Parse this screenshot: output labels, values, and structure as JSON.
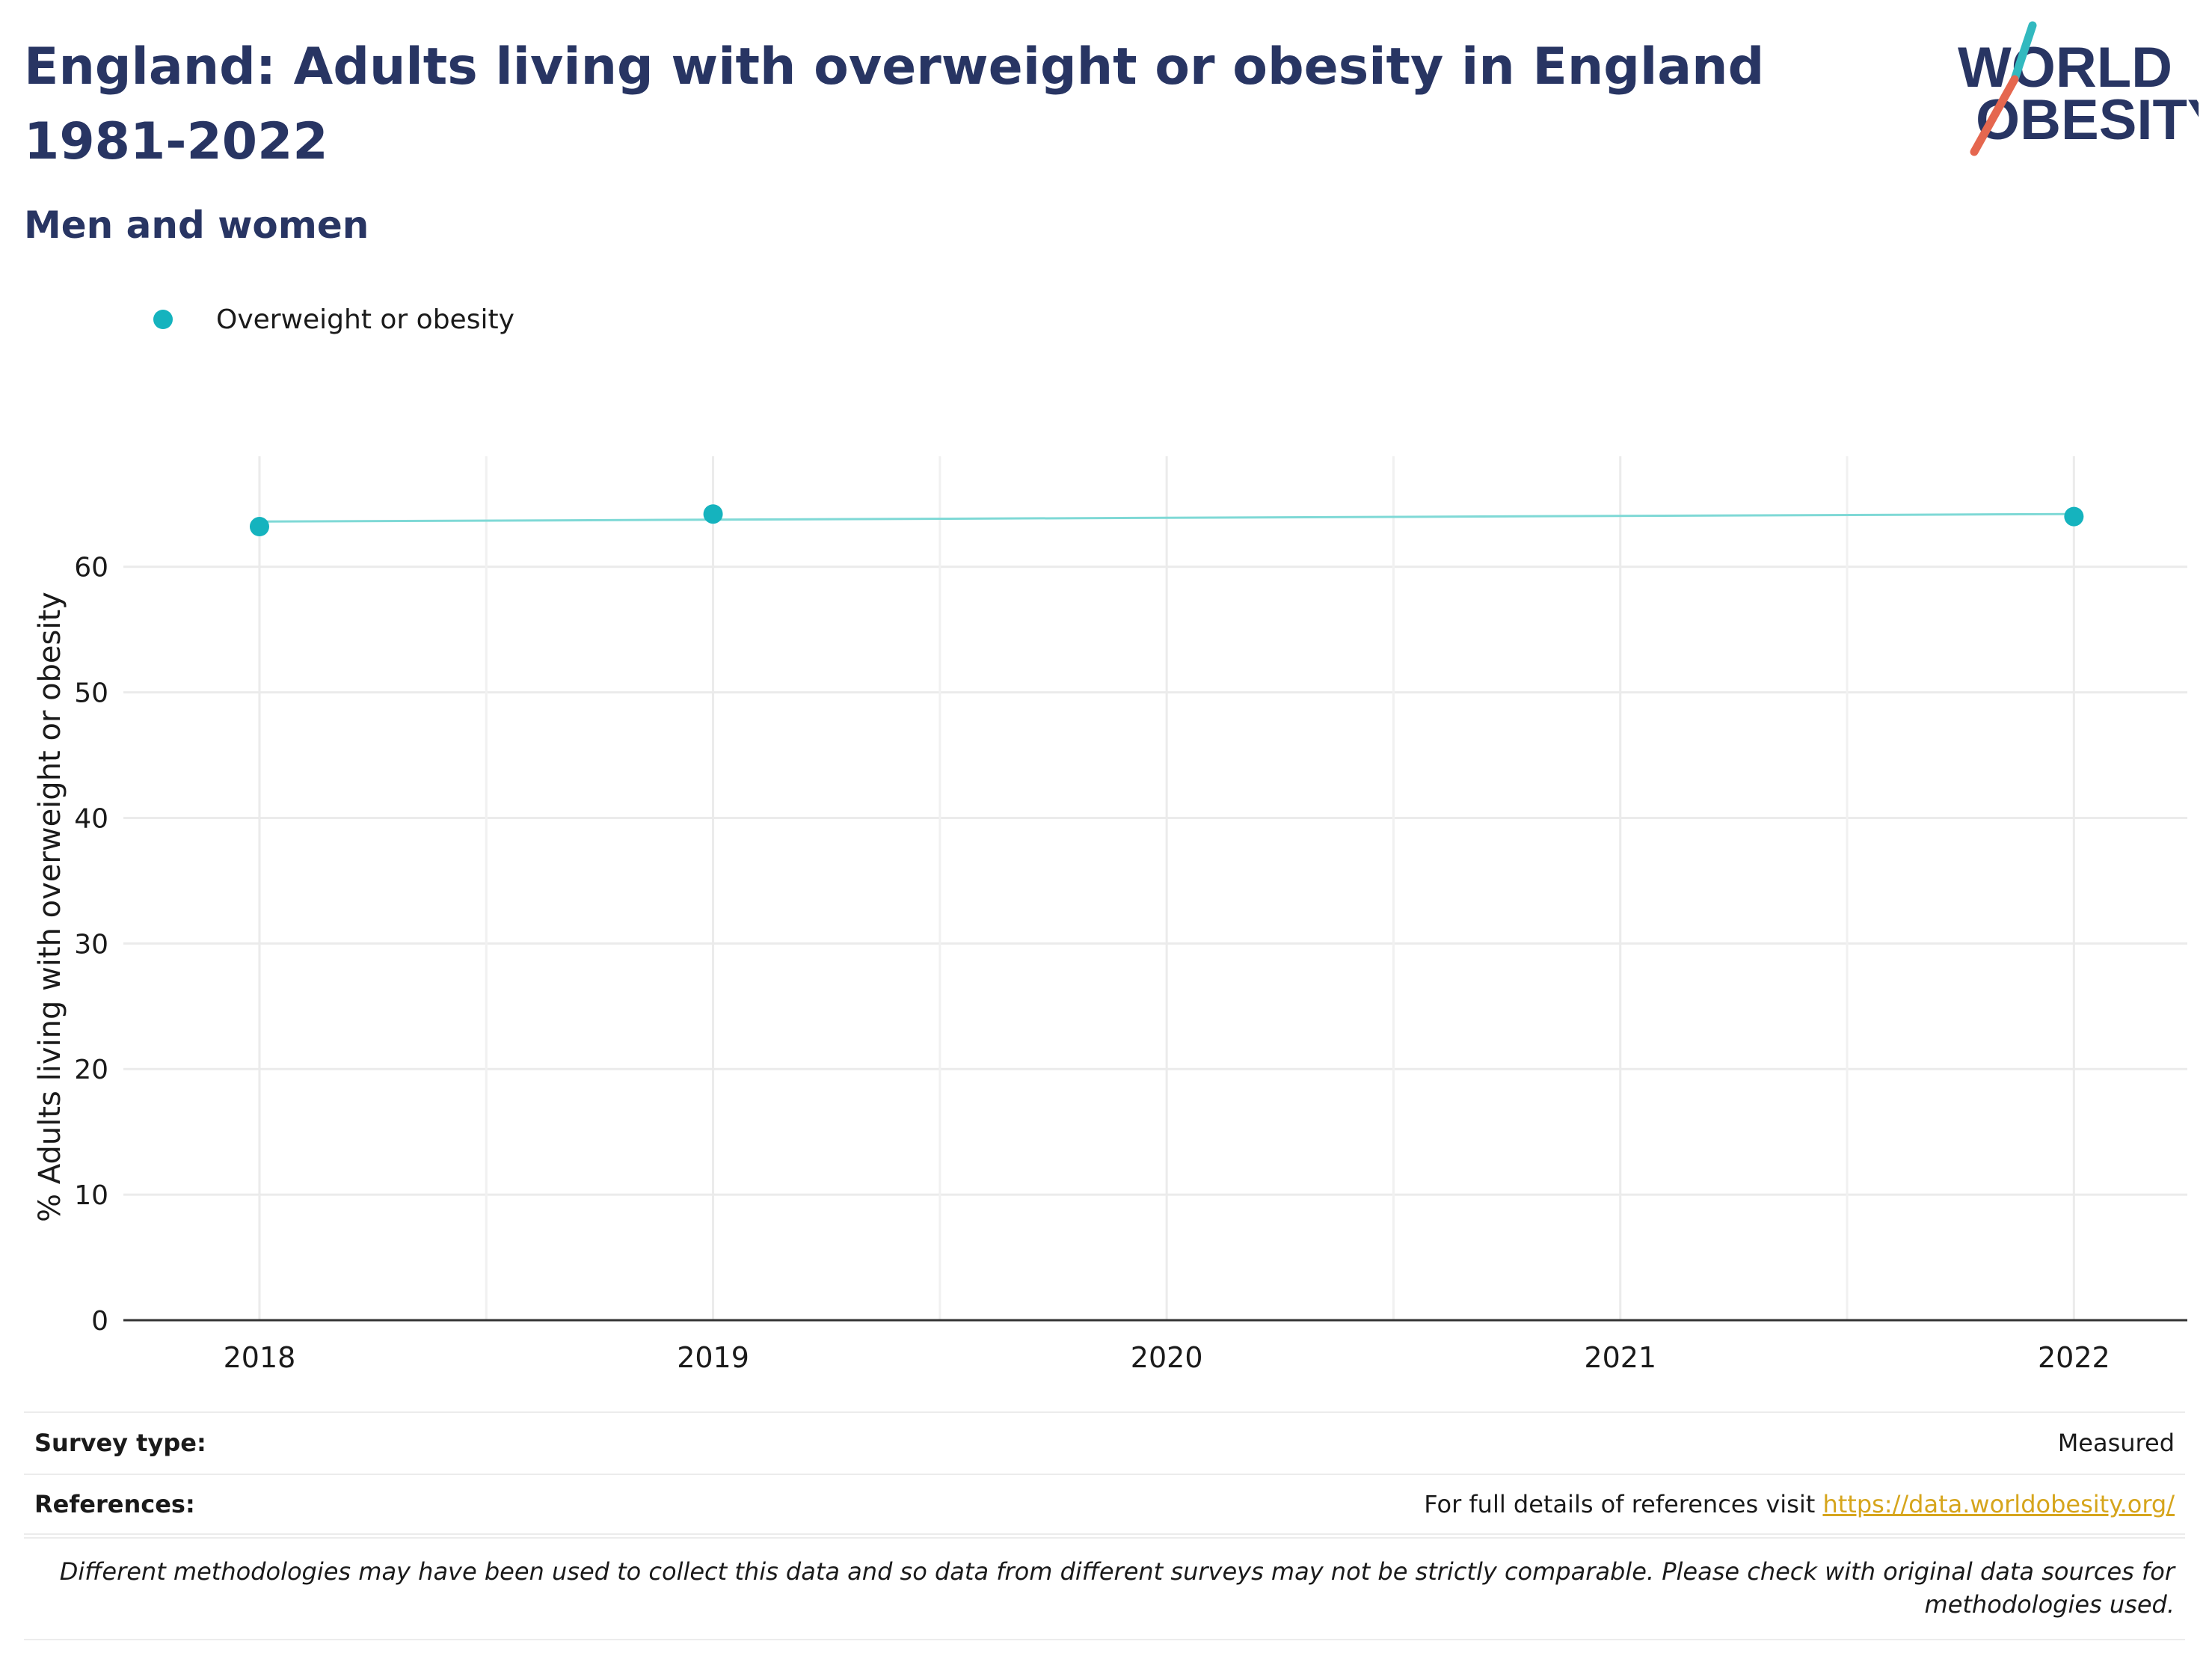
{
  "header": {
    "title": "England: Adults living with overweight or obesity in England 1981-2022",
    "subtitle": "Men and women",
    "logo_top": "WORLD",
    "logo_bottom": "OBESITY"
  },
  "colors": {
    "title": "#283563",
    "series": "#15b3be",
    "series_line": "#7fd9d6",
    "link": "#d6a51c",
    "logo_slash_top": "#32b9bf",
    "logo_slash_bottom": "#e5674f"
  },
  "chart_data": {
    "type": "line",
    "title": "England: Adults living with overweight or obesity in England 1981-2022",
    "subtitle": "Men and women",
    "xlabel": "",
    "ylabel": "% Adults living with overweight or obesity",
    "x_ticks": [
      "2018",
      "2019",
      "2020",
      "2021",
      "2022"
    ],
    "y_ticks": [
      0,
      10,
      20,
      30,
      40,
      50,
      60
    ],
    "xlim": [
      2017.7,
      2022.25
    ],
    "ylim": [
      0,
      68.8
    ],
    "grid": true,
    "legend_position": "top-left",
    "series": [
      {
        "name": "Overweight or obesity",
        "points": [
          {
            "x": 2018,
            "y": 63.2
          },
          {
            "x": 2019,
            "y": 64.2
          },
          {
            "x": 2022,
            "y": 64.0
          }
        ],
        "trend": [
          {
            "x": 2018,
            "y": 63.6
          },
          {
            "x": 2022,
            "y": 64.2
          }
        ]
      }
    ]
  },
  "info": {
    "survey_type_label": "Survey type:",
    "survey_type_value": "Measured",
    "references_label": "References:",
    "references_text": "For full details of references visit ",
    "references_link": "https://data.worldobesity.org/",
    "note": "Different methodologies may have been used to collect this data and so data from different surveys may not be strictly comparable. Please check with original data sources for methodologies used."
  }
}
